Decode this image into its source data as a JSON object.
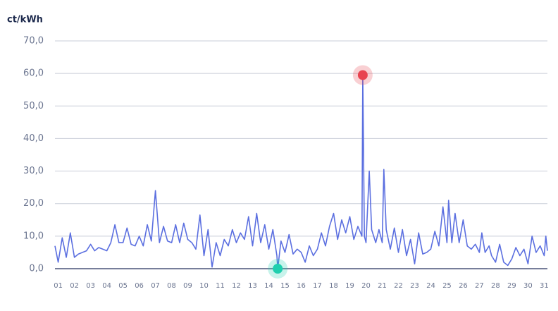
{
  "chart_data": {
    "type": "line",
    "y_label": "ct/kWh",
    "x": [
      0.8,
      1.0,
      1.25,
      1.5,
      1.75,
      2.0,
      2.25,
      2.5,
      2.75,
      3.0,
      3.25,
      3.5,
      3.75,
      4.0,
      4.25,
      4.5,
      4.75,
      5.0,
      5.25,
      5.5,
      5.75,
      6.0,
      6.25,
      6.5,
      6.75,
      7.0,
      7.25,
      7.5,
      7.75,
      8.0,
      8.25,
      8.5,
      8.75,
      9.0,
      9.25,
      9.5,
      9.75,
      10.0,
      10.25,
      10.5,
      10.75,
      11.0,
      11.25,
      11.5,
      11.75,
      12.0,
      12.25,
      12.5,
      12.75,
      13.0,
      13.25,
      13.5,
      13.75,
      14.0,
      14.25,
      14.5,
      14.55,
      14.75,
      15.0,
      15.25,
      15.5,
      15.75,
      16.0,
      16.25,
      16.5,
      16.75,
      17.0,
      17.25,
      17.5,
      17.75,
      18.0,
      18.25,
      18.5,
      18.75,
      19.0,
      19.25,
      19.5,
      19.75,
      19.8,
      19.9,
      20.0,
      20.2,
      20.35,
      20.6,
      20.8,
      21.0,
      21.1,
      21.25,
      21.5,
      21.75,
      22.0,
      22.25,
      22.5,
      22.75,
      23.0,
      23.25,
      23.5,
      23.75,
      24.0,
      24.25,
      24.5,
      24.75,
      25.0,
      25.1,
      25.3,
      25.5,
      25.75,
      26.0,
      26.25,
      26.5,
      26.75,
      27.0,
      27.15,
      27.35,
      27.6,
      27.75,
      28.0,
      28.25,
      28.5,
      28.75,
      29.0,
      29.25,
      29.5,
      29.75,
      30.0,
      30.25,
      30.5,
      30.75,
      31.0,
      31.1,
      31.2
    ],
    "series": [
      {
        "color": "#5b6fe0",
        "values": [
          7,
          2,
          9.5,
          3.5,
          11,
          3.5,
          4.5,
          5,
          5.5,
          7.5,
          5.5,
          6.5,
          6,
          5.5,
          8,
          13.5,
          8,
          8,
          12.5,
          7.5,
          7,
          10,
          7,
          13.5,
          8.5,
          24,
          8,
          13,
          8.5,
          8,
          13.5,
          8,
          14,
          9,
          8,
          6,
          16.5,
          4,
          12,
          0.5,
          8,
          4,
          9,
          7,
          12,
          8,
          11,
          9,
          16,
          7,
          17,
          8,
          13.5,
          6,
          12,
          4,
          0,
          8.5,
          5,
          10.5,
          4.5,
          6,
          5,
          2,
          7,
          4,
          6,
          11,
          7,
          13,
          17,
          9,
          15,
          11,
          16,
          9,
          13,
          10,
          59.5,
          10,
          8,
          30,
          12,
          8,
          12,
          8,
          30.5,
          12,
          6,
          12.5,
          5,
          12,
          4,
          9,
          1.5,
          11,
          4.5,
          5,
          6,
          11.5,
          7,
          19,
          8,
          21,
          8,
          17,
          8,
          15,
          7,
          6,
          7.5,
          5,
          11,
          5,
          7,
          4,
          2,
          7.5,
          2,
          1,
          3,
          6.5,
          4,
          6,
          1.5,
          10,
          5,
          7,
          4,
          10,
          5.5
        ]
      }
    ],
    "highlights": [
      {
        "x": 19.8,
        "y": 59.5,
        "color": "#e8434f"
      },
      {
        "x": 14.55,
        "y": 0,
        "color": "#1fcfae"
      }
    ],
    "xlim": [
      0.8,
      31.2
    ],
    "ylim": [
      0,
      70
    ],
    "xticks": [
      {
        "value": 1,
        "label": "01"
      },
      {
        "value": 2,
        "label": "02"
      },
      {
        "value": 3,
        "label": "03"
      },
      {
        "value": 4,
        "label": "04"
      },
      {
        "value": 5,
        "label": "05"
      },
      {
        "value": 6,
        "label": "06"
      },
      {
        "value": 7,
        "label": "07"
      },
      {
        "value": 8,
        "label": "08"
      },
      {
        "value": 9,
        "label": "09"
      },
      {
        "value": 10,
        "label": "10"
      },
      {
        "value": 11,
        "label": "11"
      },
      {
        "value": 12,
        "label": "12"
      },
      {
        "value": 13,
        "label": "13"
      },
      {
        "value": 14,
        "label": "14"
      },
      {
        "value": 15,
        "label": "15"
      },
      {
        "value": 16,
        "label": "16"
      },
      {
        "value": 17,
        "label": "17"
      },
      {
        "value": 18,
        "label": "18"
      },
      {
        "value": 19,
        "label": "19"
      },
      {
        "value": 20,
        "label": "20"
      },
      {
        "value": 21,
        "label": "21"
      },
      {
        "value": 22,
        "label": "22"
      },
      {
        "value": 23,
        "label": "23"
      },
      {
        "value": 24,
        "label": "24"
      },
      {
        "value": 25,
        "label": "25"
      },
      {
        "value": 26,
        "label": "26"
      },
      {
        "value": 27,
        "label": "27"
      },
      {
        "value": 28,
        "label": "28"
      },
      {
        "value": 29,
        "label": "29"
      },
      {
        "value": 30,
        "label": "30"
      },
      {
        "value": 31,
        "label": "31"
      }
    ],
    "yticks": [
      {
        "value": 0,
        "label": "0,0"
      },
      {
        "value": 10,
        "label": "10,0"
      },
      {
        "value": 20,
        "label": "20,0"
      },
      {
        "value": 30,
        "label": "30,0"
      },
      {
        "value": 40,
        "label": "40,0"
      },
      {
        "value": 50,
        "label": "50,0"
      },
      {
        "value": 60,
        "label": "60,0"
      },
      {
        "value": 70,
        "label": "70,0"
      }
    ],
    "grid": true
  }
}
